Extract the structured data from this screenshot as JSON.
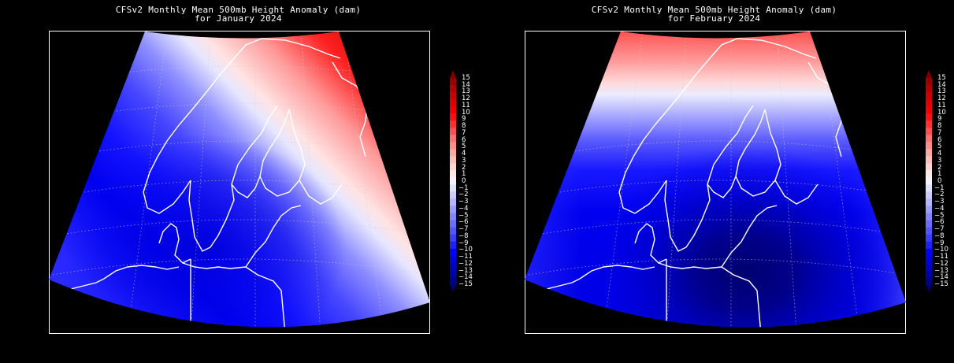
{
  "figure": {
    "background": "#000000",
    "panels": [
      {
        "id": "january",
        "title_line1": "CFSv2 Monthly Mean 500mb Height Anomaly (dam)",
        "title_line2": "for January 2024",
        "region": "Northern Europe / Scandinavia / Baltic",
        "pattern": "positive anomaly NE (Russia/Finland), negative anomaly SW (North Sea/Denmark/Germany)"
      },
      {
        "id": "february",
        "title_line1": "CFSv2 Monthly Mean 500mb Height Anomaly (dam)",
        "title_line2": "for February 2024",
        "region": "Northern Europe / Scandinavia / Baltic",
        "pattern": "positive anomaly far north (Arctic coast), strong negative anomaly centered over Poland/Baltic"
      }
    ],
    "colorbar": {
      "min": -15,
      "max": 15,
      "step": 1,
      "labels": [
        "15",
        "14",
        "13",
        "12",
        "11",
        "10",
        "9",
        "8",
        "7",
        "6",
        "5",
        "4",
        "3",
        "2",
        "1",
        "0",
        "−1",
        "−2",
        "−3",
        "−4",
        "−5",
        "−6",
        "−7",
        "−8",
        "−9",
        "−10",
        "−11",
        "−12",
        "−13",
        "−14",
        "−15"
      ],
      "extend": "both",
      "colors_top_to_bottom": [
        "#7a0000",
        "#9b0000",
        "#b40000",
        "#cc0000",
        "#e00000",
        "#f00000",
        "#ff1010",
        "#ff3030",
        "#ff5050",
        "#ff7070",
        "#ff8c8c",
        "#ffa6a6",
        "#ffbebe",
        "#ffd4d4",
        "#ffe8e8",
        "#f4f4ff",
        "#e0e0ff",
        "#ccccff",
        "#b4b4ff",
        "#9c9cff",
        "#8484ff",
        "#6c6cff",
        "#5454ff",
        "#3c3cff",
        "#2020ff",
        "#0000ff",
        "#0000e0",
        "#0000c4",
        "#0000a8",
        "#00008c",
        "#000070"
      ]
    }
  },
  "chart_data": [
    {
      "type": "heatmap",
      "title": "CFSv2 Monthly Mean 500mb Height Anomaly (dam) for January 2024",
      "xlabel": "",
      "ylabel": "",
      "colorbar_range": [
        -15,
        15
      ],
      "colorbar_ticks": [
        -15,
        -14,
        -13,
        -12,
        -11,
        -10,
        -9,
        -8,
        -7,
        -6,
        -5,
        -4,
        -3,
        -2,
        -1,
        0,
        1,
        2,
        3,
        4,
        5,
        6,
        7,
        8,
        9,
        10,
        11,
        12,
        13,
        14,
        15
      ],
      "units": "dam",
      "description": "Anomaly gradient oriented NW-SE; max positive (~+15) over NW Russia / Kola in the NE corner, zero line runs from northern Norway through eastern Finland/Baltic toward SE; min negative (~-10 to -11) over Denmark, southern Sweden and northern Germany/Poland.",
      "approx_regional_values": {
        "NE_corner_Kola_Russia": 15,
        "Finland_east": 5,
        "Northern_Norway": 0,
        "Baltic_states": -4,
        "Southern_Norway": -9,
        "Denmark": -11,
        "Northern_Germany": -11,
        "Netherlands": -8,
        "SE_corner_Belarus": 3
      }
    },
    {
      "type": "heatmap",
      "title": "CFSv2 Monthly Mean 500mb Height Anomaly (dam) for February 2024",
      "xlabel": "",
      "ylabel": "",
      "colorbar_range": [
        -15,
        15
      ],
      "colorbar_ticks": [
        -15,
        -14,
        -13,
        -12,
        -11,
        -10,
        -9,
        -8,
        -7,
        -6,
        -5,
        -4,
        -3,
        -2,
        -1,
        0,
        1,
        2,
        3,
        4,
        5,
        6,
        7,
        8,
        9,
        10,
        11,
        12,
        13,
        14,
        15
      ],
      "units": "dam",
      "description": "Zonal pattern: positive anomalies (~+5 to +9) along the northern edge (Arctic Norway / Kola), zero line near the Arctic Circle across northern Scandinavia, strong negative anomaly (~-14 to -15) centered over Poland / southern Baltic.",
      "approx_regional_values": {
        "NE_corner_Kola_Russia": 9,
        "Northern_Norway_coast": 6,
        "Lapland": 0,
        "Central_Sweden_Finland": -8,
        "Southern_Norway": -10,
        "Denmark": -12,
        "Southern_Baltic_Poland": -15,
        "Netherlands": -10,
        "Baltic_states": -13
      }
    }
  ]
}
